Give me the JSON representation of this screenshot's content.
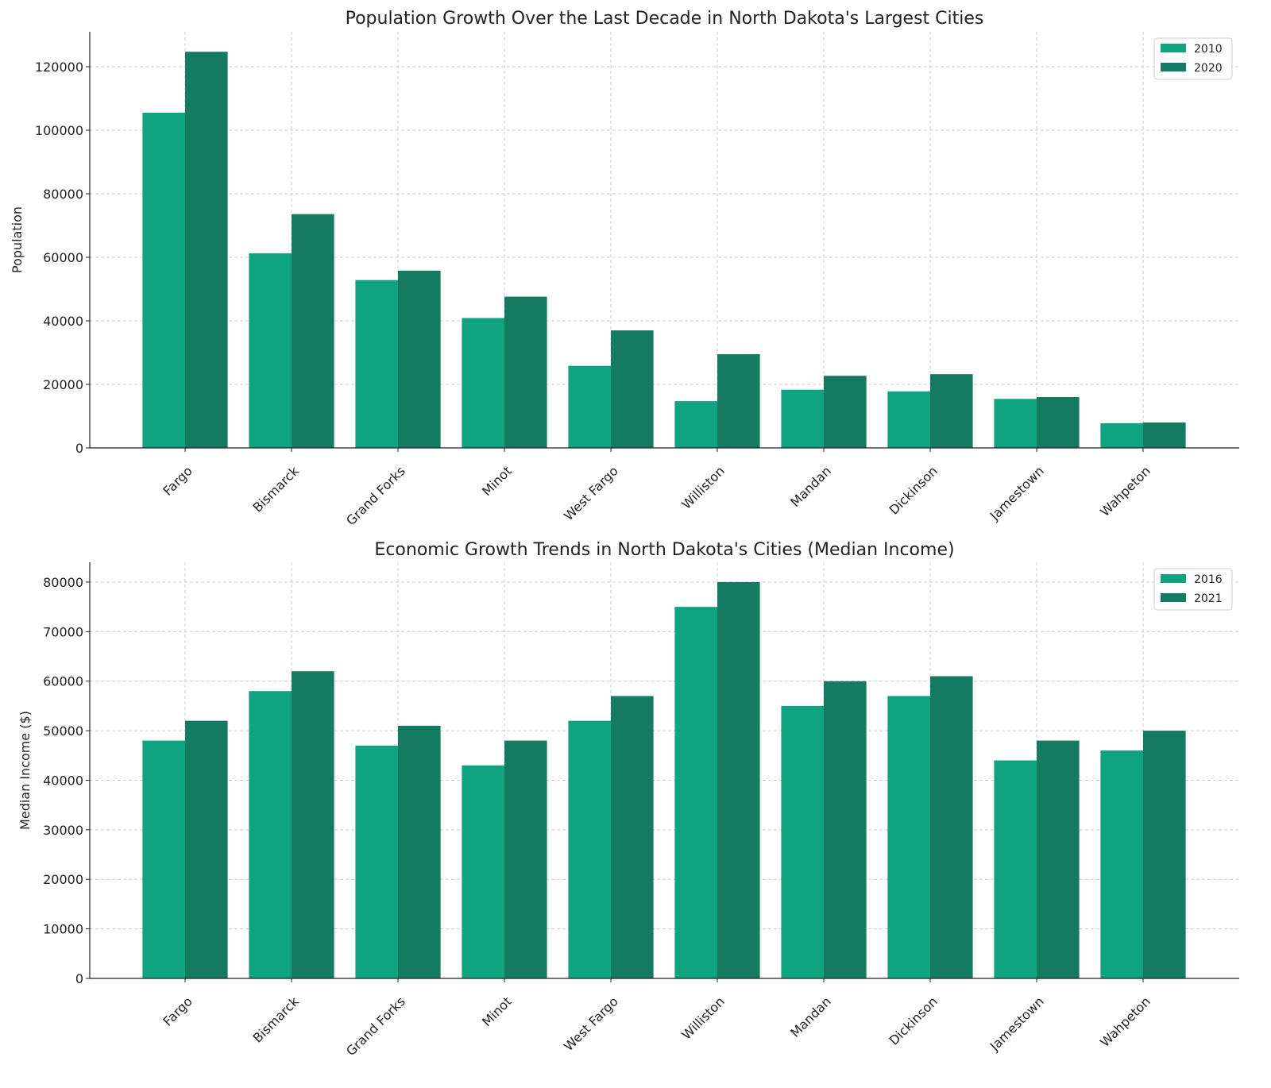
{
  "chart_data": [
    {
      "type": "bar",
      "title": "Population Growth Over the Last Decade in North Dakota's Largest Cities",
      "xlabel": "",
      "ylabel": "Population",
      "categories": [
        "Fargo",
        "Bismarck",
        "Grand Forks",
        "Minot",
        "West Fargo",
        "Williston",
        "Mandan",
        "Dickinson",
        "Jamestown",
        "Wahpeton"
      ],
      "series": [
        {
          "name": "2010",
          "color": "#10a37f",
          "values": [
            105549,
            61272,
            52838,
            40888,
            25830,
            14716,
            18331,
            17787,
            15427,
            7766
          ]
        },
        {
          "name": "2020",
          "color": "#147a60",
          "values": [
            124700,
            73600,
            55800,
            47600,
            37000,
            29500,
            22700,
            23200,
            16000,
            8000
          ]
        }
      ],
      "ylim": [
        0,
        131000
      ],
      "yticks": [
        0,
        20000,
        40000,
        60000,
        80000,
        100000,
        120000
      ],
      "grid": true,
      "legend": "top-right"
    },
    {
      "type": "bar",
      "title": "Economic Growth Trends in North Dakota's Cities (Median Income)",
      "xlabel": "",
      "ylabel": "Median Income ($)",
      "categories": [
        "Fargo",
        "Bismarck",
        "Grand Forks",
        "Minot",
        "West Fargo",
        "Williston",
        "Mandan",
        "Dickinson",
        "Jamestown",
        "Wahpeton"
      ],
      "series": [
        {
          "name": "2016",
          "color": "#10a37f",
          "values": [
            48000,
            58000,
            47000,
            43000,
            52000,
            75000,
            55000,
            57000,
            44000,
            46000
          ]
        },
        {
          "name": "2021",
          "color": "#147a60",
          "values": [
            52000,
            62000,
            51000,
            48000,
            57000,
            80000,
            60000,
            61000,
            48000,
            50000
          ]
        }
      ],
      "ylim": [
        0,
        84000
      ],
      "yticks": [
        0,
        10000,
        20000,
        30000,
        40000,
        50000,
        60000,
        70000,
        80000
      ],
      "grid": true,
      "legend": "top-right"
    }
  ]
}
